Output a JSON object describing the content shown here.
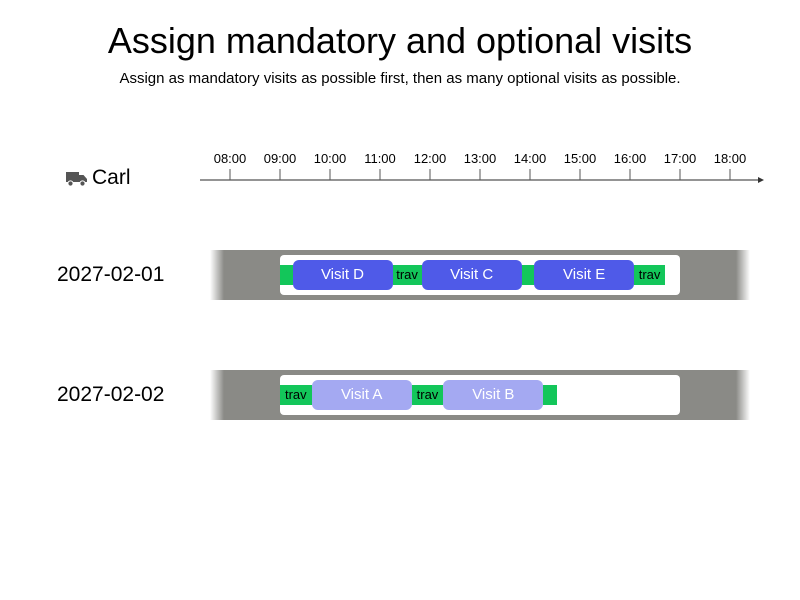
{
  "header": {
    "title": "Assign mandatory and optional visits",
    "subtitle": "Assign as mandatory visits as possible first, then as many optional visits as possible."
  },
  "driver": {
    "name": "Carl",
    "icon": "truck-icon"
  },
  "timeline": {
    "ticks": [
      "08:00",
      "09:00",
      "10:00",
      "11:00",
      "12:00",
      "13:00",
      "14:00",
      "15:00",
      "16:00",
      "17:00",
      "18:00"
    ]
  },
  "days": [
    {
      "date": "2027-02-01",
      "shift": {
        "start": "09:00",
        "end": "17:00"
      },
      "items": [
        {
          "kind": "travel",
          "label": "",
          "start": "09:00",
          "end": "09:15"
        },
        {
          "kind": "visit",
          "label": "Visit D",
          "start": "09:15",
          "end": "11:15",
          "mandatory": true
        },
        {
          "kind": "travel",
          "label": "trav",
          "start": "11:15",
          "end": "11:50"
        },
        {
          "kind": "visit",
          "label": "Visit C",
          "start": "11:50",
          "end": "13:50",
          "mandatory": true
        },
        {
          "kind": "travel",
          "label": "",
          "start": "13:50",
          "end": "14:05"
        },
        {
          "kind": "visit",
          "label": "Visit E",
          "start": "14:05",
          "end": "16:05",
          "mandatory": true
        },
        {
          "kind": "travel",
          "label": "trav",
          "start": "16:05",
          "end": "16:42"
        }
      ]
    },
    {
      "date": "2027-02-02",
      "shift": {
        "start": "09:00",
        "end": "17:00"
      },
      "items": [
        {
          "kind": "travel",
          "label": "trav",
          "start": "09:00",
          "end": "09:38"
        },
        {
          "kind": "visit",
          "label": "Visit A",
          "start": "09:38",
          "end": "11:38",
          "mandatory": false
        },
        {
          "kind": "travel",
          "label": "trav",
          "start": "11:38",
          "end": "12:16"
        },
        {
          "kind": "visit",
          "label": "Visit B",
          "start": "12:16",
          "end": "14:16",
          "mandatory": false
        },
        {
          "kind": "travel",
          "label": "",
          "start": "14:16",
          "end": "14:32"
        }
      ]
    }
  ],
  "colors": {
    "mandatory_visit": "#4f5ae8",
    "optional_visit": "#a4a9f2",
    "travel": "#13c65a",
    "day_band": "#8a8a86",
    "shift": "#ffffff"
  }
}
